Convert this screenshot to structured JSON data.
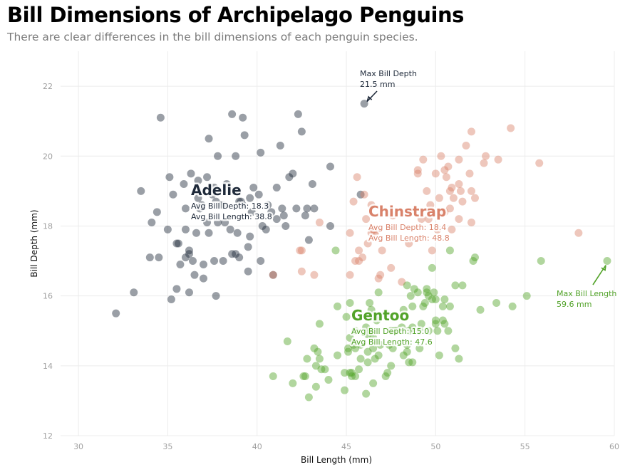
{
  "header": {
    "title": "Bill Dimensions of Archipelago Penguins",
    "subtitle": "There are clear differences in the bill dimensions of each penguin species."
  },
  "chart_data": {
    "type": "scatter",
    "title": "Bill Dimensions of Archipelago Penguins",
    "subtitle": "There are clear differences in the bill dimensions of each penguin species.",
    "xlabel": "Bill Length (mm)",
    "ylabel": "Bill Depth (mm)",
    "xlim": [
      29,
      60
    ],
    "ylim": [
      12,
      23
    ],
    "xticks": [
      30,
      35,
      40,
      45,
      50,
      55,
      60
    ],
    "yticks": [
      12,
      14,
      16,
      18,
      20,
      22
    ],
    "grid": true,
    "series": [
      {
        "name": "Adelie",
        "color": "#1f2a3a",
        "avg_label_1": "Avg Bill Depth: 18.3",
        "avg_label_2": "Avg Bill Length: 38.8",
        "points": [
          [
            32.1,
            15.5
          ],
          [
            33.1,
            16.1
          ],
          [
            33.5,
            19.0
          ],
          [
            34.0,
            17.1
          ],
          [
            34.1,
            18.1
          ],
          [
            34.4,
            18.4
          ],
          [
            34.5,
            17.1
          ],
          [
            34.6,
            21.1
          ],
          [
            35.0,
            17.9
          ],
          [
            35.1,
            19.4
          ],
          [
            35.2,
            15.9
          ],
          [
            35.3,
            18.9
          ],
          [
            35.5,
            17.5
          ],
          [
            35.5,
            16.2
          ],
          [
            35.6,
            17.5
          ],
          [
            35.7,
            16.9
          ],
          [
            35.9,
            19.2
          ],
          [
            36.0,
            18.5
          ],
          [
            36.0,
            17.9
          ],
          [
            36.0,
            17.1
          ],
          [
            36.2,
            17.3
          ],
          [
            36.2,
            16.1
          ],
          [
            36.2,
            17.2
          ],
          [
            36.3,
            19.5
          ],
          [
            36.4,
            17.0
          ],
          [
            36.5,
            16.6
          ],
          [
            36.6,
            17.8
          ],
          [
            36.7,
            18.8
          ],
          [
            36.7,
            19.3
          ],
          [
            36.8,
            18.5
          ],
          [
            36.9,
            18.6
          ],
          [
            37.0,
            16.9
          ],
          [
            37.0,
            16.5
          ],
          [
            37.2,
            18.1
          ],
          [
            37.2,
            19.4
          ],
          [
            37.3,
            20.5
          ],
          [
            37.3,
            17.8
          ],
          [
            37.5,
            18.9
          ],
          [
            37.6,
            17.0
          ],
          [
            37.6,
            19.1
          ],
          [
            37.7,
            18.7
          ],
          [
            37.7,
            16.0
          ],
          [
            37.8,
            18.1
          ],
          [
            37.8,
            20.0
          ],
          [
            37.9,
            18.6
          ],
          [
            38.1,
            18.6
          ],
          [
            38.1,
            17.0
          ],
          [
            38.2,
            18.1
          ],
          [
            38.3,
            19.2
          ],
          [
            38.5,
            17.9
          ],
          [
            38.6,
            21.2
          ],
          [
            38.6,
            17.2
          ],
          [
            38.7,
            19.0
          ],
          [
            38.8,
            17.2
          ],
          [
            38.8,
            20.0
          ],
          [
            38.9,
            17.8
          ],
          [
            39.0,
            17.1
          ],
          [
            39.0,
            18.7
          ],
          [
            39.1,
            18.7
          ],
          [
            39.2,
            21.1
          ],
          [
            39.2,
            18.6
          ],
          [
            39.3,
            20.6
          ],
          [
            39.5,
            17.4
          ],
          [
            39.5,
            16.7
          ],
          [
            39.6,
            17.7
          ],
          [
            39.6,
            18.8
          ],
          [
            39.7,
            18.4
          ],
          [
            39.8,
            19.1
          ],
          [
            40.1,
            18.9
          ],
          [
            40.2,
            17.0
          ],
          [
            40.2,
            20.1
          ],
          [
            40.3,
            18.0
          ],
          [
            40.5,
            17.9
          ],
          [
            40.6,
            18.6
          ],
          [
            40.8,
            18.4
          ],
          [
            40.9,
            16.6
          ],
          [
            41.1,
            18.2
          ],
          [
            41.1,
            19.1
          ],
          [
            41.3,
            20.3
          ],
          [
            41.4,
            18.5
          ],
          [
            41.5,
            18.3
          ],
          [
            41.6,
            18.0
          ],
          [
            41.8,
            19.4
          ],
          [
            42.0,
            19.5
          ],
          [
            42.2,
            18.5
          ],
          [
            42.3,
            21.2
          ],
          [
            42.5,
            20.7
          ],
          [
            42.7,
            18.3
          ],
          [
            42.8,
            18.5
          ],
          [
            42.9,
            17.6
          ],
          [
            43.1,
            19.2
          ],
          [
            43.2,
            18.5
          ],
          [
            44.1,
            19.7
          ],
          [
            44.1,
            18.0
          ],
          [
            45.8,
            18.9
          ],
          [
            46.0,
            21.5
          ]
        ]
      },
      {
        "name": "Chinstrap",
        "color": "#d9826a",
        "avg_label_1": "Avg Bill Depth: 18.4",
        "avg_label_2": "Avg Bill Length: 48.8",
        "points": [
          [
            40.9,
            16.6
          ],
          [
            42.4,
            17.3
          ],
          [
            42.5,
            17.3
          ],
          [
            42.5,
            16.7
          ],
          [
            43.2,
            16.6
          ],
          [
            43.5,
            18.1
          ],
          [
            45.2,
            16.6
          ],
          [
            45.2,
            17.8
          ],
          [
            45.4,
            18.7
          ],
          [
            45.5,
            17.0
          ],
          [
            45.6,
            19.4
          ],
          [
            45.7,
            17.3
          ],
          [
            45.7,
            17.0
          ],
          [
            45.9,
            17.1
          ],
          [
            46.0,
            18.9
          ],
          [
            46.1,
            18.2
          ],
          [
            46.2,
            17.5
          ],
          [
            46.4,
            18.6
          ],
          [
            46.4,
            17.8
          ],
          [
            46.5,
            17.9
          ],
          [
            46.6,
            17.8
          ],
          [
            46.7,
            17.9
          ],
          [
            46.8,
            16.5
          ],
          [
            46.9,
            16.6
          ],
          [
            47.0,
            17.3
          ],
          [
            47.5,
            16.8
          ],
          [
            47.6,
            18.3
          ],
          [
            48.1,
            16.4
          ],
          [
            48.5,
            17.5
          ],
          [
            49.0,
            19.5
          ],
          [
            49.0,
            19.6
          ],
          [
            49.2,
            18.2
          ],
          [
            49.3,
            19.9
          ],
          [
            49.5,
            19.0
          ],
          [
            49.6,
            18.2
          ],
          [
            49.7,
            18.6
          ],
          [
            49.8,
            17.3
          ],
          [
            50.0,
            19.5
          ],
          [
            50.1,
            17.9
          ],
          [
            50.2,
            18.8
          ],
          [
            50.3,
            20.0
          ],
          [
            50.5,
            19.6
          ],
          [
            50.5,
            18.4
          ],
          [
            50.6,
            19.4
          ],
          [
            50.7,
            19.7
          ],
          [
            50.8,
            19.0
          ],
          [
            50.8,
            18.5
          ],
          [
            50.9,
            19.1
          ],
          [
            50.9,
            17.9
          ],
          [
            51.0,
            18.8
          ],
          [
            51.3,
            18.2
          ],
          [
            51.3,
            19.2
          ],
          [
            51.3,
            19.9
          ],
          [
            51.4,
            19.0
          ],
          [
            51.5,
            18.7
          ],
          [
            51.7,
            20.3
          ],
          [
            51.9,
            19.5
          ],
          [
            52.0,
            18.1
          ],
          [
            52.0,
            19.0
          ],
          [
            52.0,
            20.7
          ],
          [
            52.2,
            18.8
          ],
          [
            52.7,
            19.8
          ],
          [
            52.8,
            20.0
          ],
          [
            53.5,
            19.9
          ],
          [
            54.2,
            20.8
          ],
          [
            55.8,
            19.8
          ],
          [
            58.0,
            17.8
          ]
        ]
      },
      {
        "name": "Gentoo",
        "color": "#52a329",
        "avg_label_1": "Avg Bill Depth: 15.0",
        "avg_label_2": "Avg Bill Length: 47.6",
        "points": [
          [
            40.9,
            13.7
          ],
          [
            41.7,
            14.7
          ],
          [
            42.0,
            13.5
          ],
          [
            42.6,
            13.7
          ],
          [
            42.7,
            13.7
          ],
          [
            42.8,
            14.2
          ],
          [
            42.9,
            13.1
          ],
          [
            43.2,
            14.5
          ],
          [
            43.3,
            13.4
          ],
          [
            43.3,
            14.0
          ],
          [
            43.4,
            14.4
          ],
          [
            43.5,
            14.2
          ],
          [
            43.5,
            15.2
          ],
          [
            43.6,
            13.9
          ],
          [
            43.8,
            13.9
          ],
          [
            44.0,
            13.6
          ],
          [
            44.4,
            17.3
          ],
          [
            44.5,
            14.3
          ],
          [
            44.5,
            15.7
          ],
          [
            44.9,
            13.3
          ],
          [
            44.9,
            13.8
          ],
          [
            45.0,
            15.4
          ],
          [
            45.1,
            14.5
          ],
          [
            45.1,
            14.4
          ],
          [
            45.2,
            13.8
          ],
          [
            45.2,
            14.8
          ],
          [
            45.2,
            15.8
          ],
          [
            45.3,
            13.7
          ],
          [
            45.3,
            13.8
          ],
          [
            45.4,
            14.6
          ],
          [
            45.5,
            13.7
          ],
          [
            45.5,
            15.0
          ],
          [
            45.5,
            14.5
          ],
          [
            45.7,
            13.9
          ],
          [
            45.8,
            14.6
          ],
          [
            45.8,
            14.2
          ],
          [
            46.1,
            13.2
          ],
          [
            46.1,
            15.1
          ],
          [
            46.2,
            14.1
          ],
          [
            46.2,
            14.4
          ],
          [
            46.2,
            14.9
          ],
          [
            46.3,
            15.8
          ],
          [
            46.4,
            15.6
          ],
          [
            46.4,
            15.0
          ],
          [
            46.5,
            13.5
          ],
          [
            46.5,
            14.5
          ],
          [
            46.5,
            14.8
          ],
          [
            46.6,
            14.2
          ],
          [
            46.7,
            15.3
          ],
          [
            46.8,
            14.3
          ],
          [
            46.8,
            15.4
          ],
          [
            46.8,
            16.1
          ],
          [
            46.9,
            14.6
          ],
          [
            47.2,
            13.7
          ],
          [
            47.2,
            15.5
          ],
          [
            47.3,
            13.8
          ],
          [
            47.4,
            14.6
          ],
          [
            47.5,
            14.0
          ],
          [
            47.5,
            15.0
          ],
          [
            47.6,
            14.5
          ],
          [
            47.7,
            15.0
          ],
          [
            47.8,
            15.0
          ],
          [
            48.1,
            15.1
          ],
          [
            48.2,
            14.3
          ],
          [
            48.2,
            15.6
          ],
          [
            48.4,
            14.6
          ],
          [
            48.4,
            14.4
          ],
          [
            48.4,
            16.3
          ],
          [
            48.5,
            14.1
          ],
          [
            48.5,
            15.0
          ],
          [
            48.6,
            16.0
          ],
          [
            48.7,
            14.1
          ],
          [
            48.7,
            15.1
          ],
          [
            48.7,
            15.7
          ],
          [
            48.8,
            16.2
          ],
          [
            49.0,
            16.1
          ],
          [
            49.1,
            14.5
          ],
          [
            49.1,
            15.0
          ],
          [
            49.2,
            15.2
          ],
          [
            49.3,
            15.7
          ],
          [
            49.4,
            15.8
          ],
          [
            49.5,
            16.2
          ],
          [
            49.5,
            16.1
          ],
          [
            49.6,
            15.0
          ],
          [
            49.6,
            16.0
          ],
          [
            49.8,
            15.9
          ],
          [
            49.8,
            16.8
          ],
          [
            49.9,
            16.1
          ],
          [
            50.0,
            15.2
          ],
          [
            50.0,
            15.3
          ],
          [
            50.0,
            15.9
          ],
          [
            50.1,
            15.0
          ],
          [
            50.2,
            14.3
          ],
          [
            50.4,
            15.3
          ],
          [
            50.4,
            15.7
          ],
          [
            50.5,
            15.2
          ],
          [
            50.5,
            15.9
          ],
          [
            50.7,
            15.0
          ],
          [
            50.8,
            15.7
          ],
          [
            50.8,
            17.3
          ],
          [
            51.1,
            14.5
          ],
          [
            51.1,
            16.3
          ],
          [
            51.3,
            14.2
          ],
          [
            51.5,
            16.3
          ],
          [
            52.1,
            17.0
          ],
          [
            52.2,
            17.1
          ],
          [
            52.5,
            15.6
          ],
          [
            53.4,
            15.8
          ],
          [
            54.3,
            15.7
          ],
          [
            55.1,
            16.0
          ],
          [
            55.9,
            17.0
          ],
          [
            59.6,
            17.0
          ]
        ]
      }
    ],
    "annotations": [
      {
        "text_line1": "Max Bill Depth",
        "text_line2": "21.5 mm",
        "target": [
          46.0,
          21.5
        ],
        "color": "#1f2a3a"
      },
      {
        "text_line1": "Max Bill Length",
        "text_line2": "59.6 mm",
        "target": [
          59.6,
          17.0
        ],
        "color": "#52a329"
      }
    ]
  }
}
